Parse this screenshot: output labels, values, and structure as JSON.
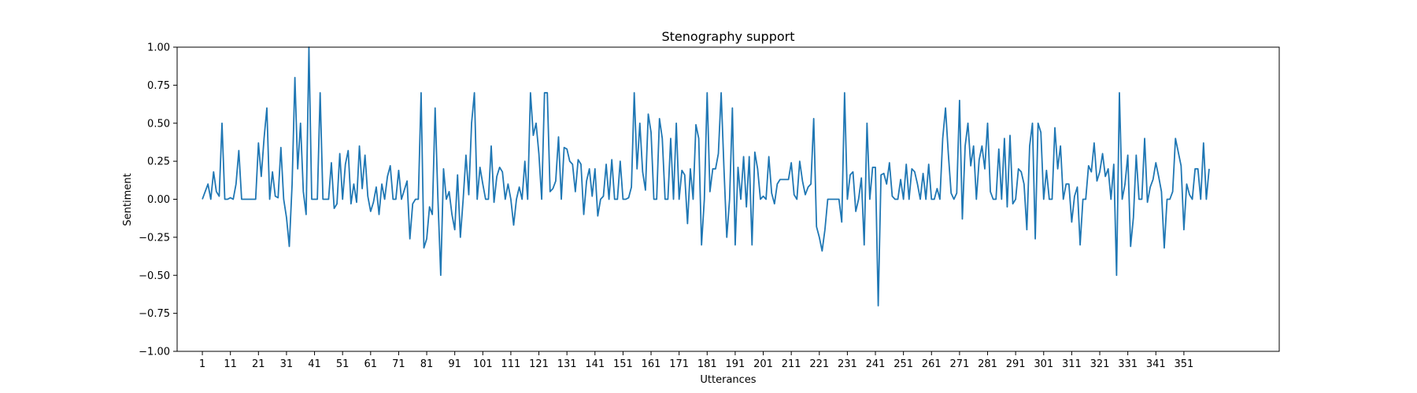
{
  "chart_data": {
    "type": "line",
    "title": "Stenography support",
    "xlabel": "Utterances",
    "ylabel": "Sentiment",
    "ylim": [
      -1.0,
      1.0
    ],
    "xlim": [
      -8,
      385
    ],
    "grid": false,
    "yticks": [
      -1.0,
      -0.75,
      -0.5,
      -0.25,
      0.0,
      0.25,
      0.5,
      0.75,
      1.0
    ],
    "ytick_labels": [
      "−1.00",
      "−0.75",
      "−0.50",
      "−0.25",
      "0.00",
      "0.25",
      "0.50",
      "0.75",
      "1.00"
    ],
    "xticks": [
      1,
      11,
      21,
      31,
      41,
      51,
      61,
      71,
      81,
      91,
      101,
      111,
      121,
      131,
      141,
      151,
      161,
      171,
      181,
      191,
      201,
      211,
      221,
      231,
      241,
      251,
      261,
      271,
      281,
      291,
      301,
      311,
      321,
      331,
      341,
      351
    ],
    "xtick_labels": [
      "1",
      "11",
      "21",
      "31",
      "41",
      "51",
      "61",
      "71",
      "81",
      "91",
      "101",
      "111",
      "121",
      "131",
      "141",
      "151",
      "161",
      "171",
      "181",
      "191",
      "201",
      "211",
      "221",
      "231",
      "241",
      "251",
      "261",
      "271",
      "281",
      "291",
      "301",
      "311",
      "321",
      "331",
      "341",
      "351"
    ],
    "series": [
      {
        "color": "#1f77b4",
        "x_start": 1,
        "values": [
          0.0,
          0.05,
          0.1,
          0.0,
          0.18,
          0.05,
          0.02,
          0.5,
          0.0,
          0.0,
          0.01,
          0.0,
          0.1,
          0.32,
          0.0,
          0.0,
          0.0,
          0.0,
          0.0,
          0.0,
          0.37,
          0.15,
          0.4,
          0.6,
          0.0,
          0.18,
          0.02,
          0.01,
          0.34,
          0.0,
          -0.12,
          -0.31,
          0.1,
          0.8,
          0.2,
          0.5,
          0.05,
          -0.1,
          1.0,
          0.0,
          0.0,
          0.0,
          0.7,
          0.0,
          0.0,
          0.0,
          0.24,
          -0.06,
          -0.03,
          0.3,
          0.0,
          0.23,
          0.32,
          -0.03,
          0.1,
          -0.02,
          0.35,
          0.07,
          0.29,
          0.02,
          -0.08,
          -0.02,
          0.08,
          -0.1,
          0.1,
          0.0,
          0.15,
          0.22,
          0.0,
          0.0,
          0.19,
          0.0,
          0.06,
          0.12,
          -0.26,
          -0.03,
          0.0,
          0.0,
          0.7,
          -0.32,
          -0.26,
          -0.05,
          -0.1,
          0.6,
          0.0,
          -0.5,
          0.2,
          0.0,
          0.05,
          -0.1,
          -0.2,
          0.16,
          -0.25,
          0.0,
          0.29,
          0.03,
          0.5,
          0.7,
          0.0,
          0.21,
          0.1,
          0.0,
          0.0,
          0.35,
          -0.02,
          0.15,
          0.21,
          0.18,
          0.0,
          0.1,
          0.0,
          -0.17,
          0.0,
          0.08,
          0.0,
          0.25,
          0.0,
          0.7,
          0.42,
          0.5,
          0.3,
          0.0,
          0.7,
          0.7,
          0.05,
          0.07,
          0.12,
          0.41,
          0.0,
          0.34,
          0.33,
          0.25,
          0.23,
          0.05,
          0.26,
          0.23,
          -0.1,
          0.12,
          0.2,
          0.02,
          0.2,
          -0.11,
          0.0,
          0.02,
          0.23,
          0.0,
          0.26,
          0.0,
          0.0,
          0.25,
          0.0,
          0.0,
          0.01,
          0.08,
          0.7,
          0.2,
          0.5,
          0.18,
          0.06,
          0.56,
          0.44,
          0.0,
          0.0,
          0.53,
          0.4,
          0.0,
          0.0,
          0.4,
          0.0,
          0.5,
          0.0,
          0.19,
          0.16,
          -0.16,
          0.2,
          0.0,
          0.49,
          0.4,
          -0.3,
          0.0,
          0.7,
          0.05,
          0.2,
          0.2,
          0.3,
          0.7,
          0.2,
          -0.25,
          0.0,
          0.6,
          -0.3,
          0.21,
          0.0,
          0.28,
          -0.05,
          0.28,
          -0.3,
          0.31,
          0.2,
          0.0,
          0.02,
          0.0,
          0.28,
          0.04,
          -0.03,
          0.1,
          0.13,
          0.13,
          0.13,
          0.13,
          0.24,
          0.03,
          0.0,
          0.25,
          0.12,
          0.03,
          0.08,
          0.1,
          0.53,
          -0.18,
          -0.25,
          -0.34,
          -0.2,
          0.0,
          0.0,
          0.0,
          0.0,
          0.0,
          -0.15,
          0.7,
          0.0,
          0.16,
          0.18,
          -0.08,
          0.0,
          0.14,
          -0.3,
          0.5,
          0.0,
          0.21,
          0.21,
          -0.7,
          0.16,
          0.17,
          0.1,
          0.24,
          0.02,
          0.0,
          0.0,
          0.13,
          0.0,
          0.23,
          0.0,
          0.2,
          0.18,
          0.1,
          0.0,
          0.17,
          0.0,
          0.23,
          0.0,
          0.0,
          0.07,
          0.0,
          0.4,
          0.6,
          0.3,
          0.04,
          0.0,
          0.04,
          0.65,
          -0.13,
          0.35,
          0.5,
          0.22,
          0.35,
          0.0,
          0.26,
          0.35,
          0.2,
          0.5,
          0.05,
          0.0,
          0.0,
          0.33,
          0.0,
          0.4,
          -0.05,
          0.42,
          -0.03,
          0.0,
          0.2,
          0.18,
          0.1,
          -0.2,
          0.35,
          0.5,
          -0.26,
          0.5,
          0.44,
          0.0,
          0.19,
          0.0,
          0.0,
          0.47,
          0.2,
          0.35,
          0.0,
          0.1,
          0.1,
          -0.15,
          0.02,
          0.08,
          -0.3,
          0.0,
          0.0,
          0.22,
          0.18,
          0.37,
          0.12,
          0.18,
          0.3,
          0.15,
          0.2,
          0.0,
          0.23,
          -0.5,
          0.7,
          0.0,
          0.1,
          0.29,
          -0.31,
          -0.12,
          0.29,
          0.0,
          0.0,
          0.4,
          -0.02,
          0.08,
          0.13,
          0.24,
          0.15,
          0.05,
          -0.32,
          0.0,
          0.0,
          0.05,
          0.4,
          0.31,
          0.22,
          -0.2,
          0.1,
          0.03,
          0.0,
          0.2,
          0.2,
          0.0,
          0.37,
          0.0,
          0.2
        ]
      }
    ]
  }
}
